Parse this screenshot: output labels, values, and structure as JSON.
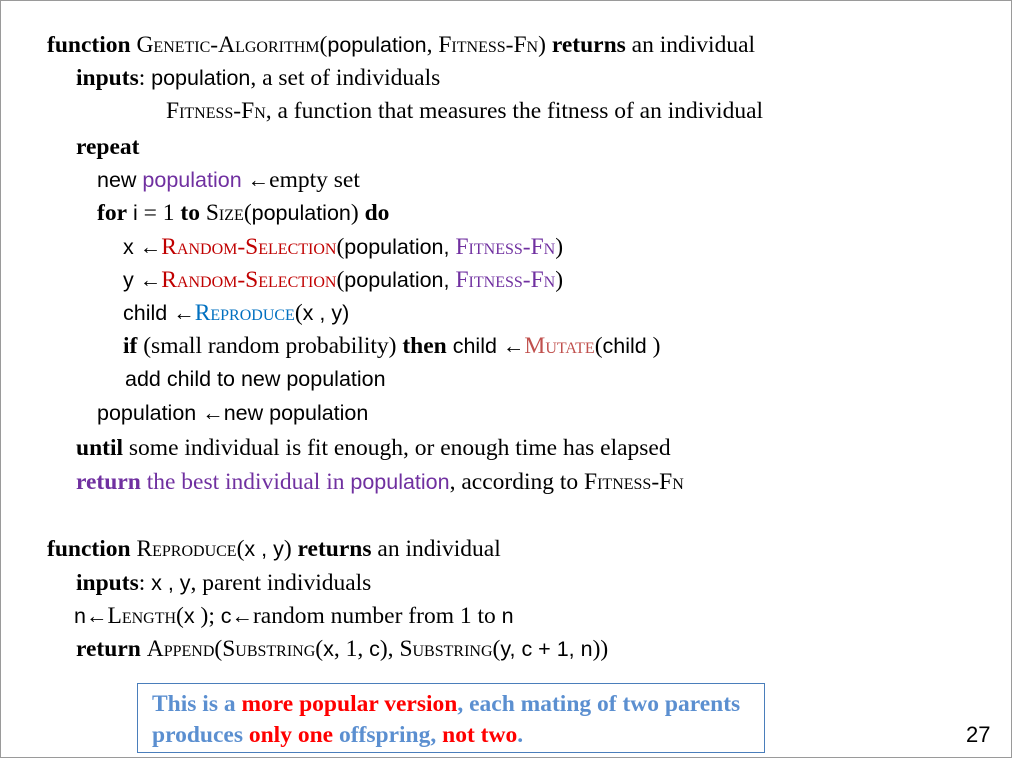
{
  "ga": {
    "line1": {
      "kw_function": "function",
      "name": "Genetic-Algorithm",
      "open": "(",
      "arg1": "population",
      "sep": ", ",
      "arg2": "Fitness-Fn",
      "close": ")",
      "kw_returns": "returns",
      "rest": " an individual"
    },
    "line2": {
      "kw": "inputs",
      "colon": ": ",
      "var": "population",
      "desc": ", a set of individuals"
    },
    "line3": {
      "name": "Fitness-Fn",
      "desc": ", a function that measures the fitness of an individual"
    },
    "line4": {
      "kw": "repeat"
    },
    "line5": {
      "pre": "new ",
      "var": "population",
      "arrow": " ←",
      "rest": "empty set"
    },
    "line6": {
      "kw_for": "for",
      "i": " i",
      "eq": " = 1 ",
      "kw_to": "to",
      "sp": " ",
      "fn": "Size",
      "open": "(",
      "var": "population",
      "close": ") ",
      "kw_do": "do"
    },
    "line7": {
      "var": "x ←",
      "fn": "Random-Selection",
      "open": "(",
      "arg": "population, ",
      "fn2": "Fitness-Fn",
      "close": ")"
    },
    "line8": {
      "var": "y ←",
      "fn": "Random-Selection",
      "open": "(",
      "arg": "population, ",
      "fn2": "Fitness-Fn",
      "close": ")"
    },
    "line9": {
      "var": "child ←",
      "fn": "Reproduce",
      "open": "(",
      "args": "x , y)"
    },
    "line10": {
      "kw_if": "if",
      "cond": " (small random probability) ",
      "kw_then": "then",
      "var": " child ←",
      "fn": "Mutate",
      "open": "(",
      "arg": "child",
      "close": " )"
    },
    "line11": {
      "text": "add child to new population"
    },
    "line12": {
      "text": "population ←new population"
    },
    "line13": {
      "kw": "until",
      "rest": " some individual is fit enough, or enough time has elapsed"
    },
    "line14": {
      "kw": "return",
      "rest1": " the best individual in ",
      "var": "population",
      "rest2": ", according to ",
      "fn": "Fitness-Fn"
    }
  },
  "reproduce": {
    "line1": {
      "kw_function": "function",
      "name": "Reproduce",
      "open": "(",
      "args": "x , y",
      "close": ") ",
      "kw_returns": "returns",
      "rest": " an individual"
    },
    "line2": {
      "kw": "inputs",
      "colon": ": ",
      "vars": "x , y",
      "desc": ", parent individuals"
    },
    "line3": {
      "n": "n←",
      "fn": "Length",
      "open": "(",
      "x": "x",
      "close": " ); ",
      "c": "c←",
      "rest": "random number from 1 to ",
      "n2": "n"
    },
    "line4": {
      "kw": "return",
      "sp": " ",
      "fn1": "Append",
      "o1": "(",
      "fn2": "Substring",
      "o2": "(",
      "x": "x",
      "a": ", 1, ",
      "c": "c",
      "cl": "), ",
      "fn3": "Substring",
      "o3": "(",
      "y": "y, c + 1, n",
      "end": "))"
    }
  },
  "callout": {
    "p1": "This is a ",
    "p2": "more popular version",
    "p3": ", each mating of two parents produces ",
    "p4": "only one",
    "p5": " offspring, ",
    "p6": "not two",
    "p7": "."
  },
  "page_number": "27",
  "colors": {
    "keyword_purple": "#7030a0",
    "function_red": "#c00000",
    "function_blue": "#0070c0",
    "callout_text": "#5b8fd0",
    "callout_highlight": "#ff0000"
  }
}
